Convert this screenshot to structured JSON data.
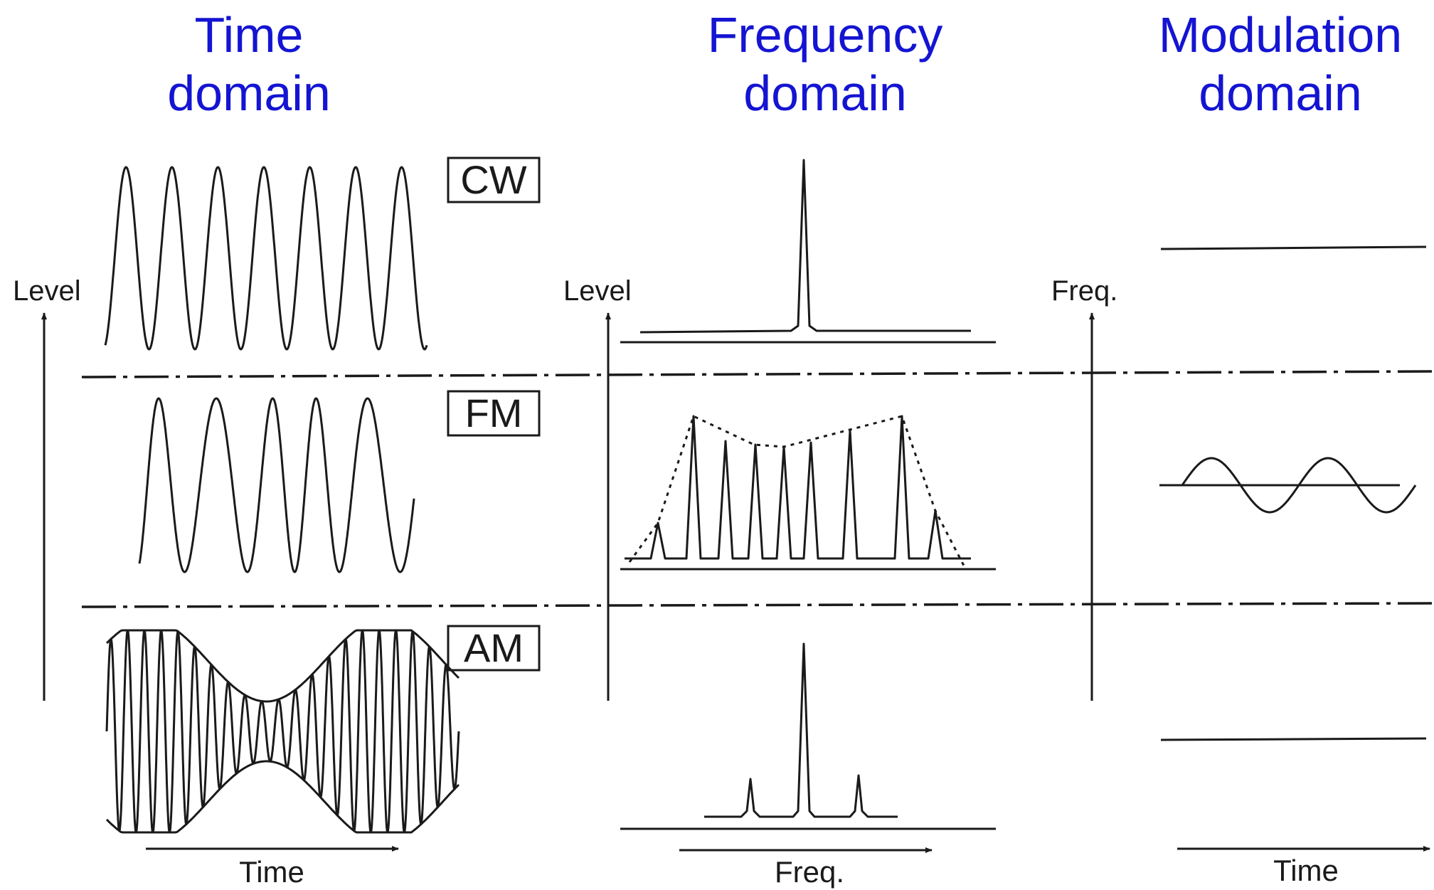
{
  "headings": {
    "time_domain": [
      "Time",
      "domain"
    ],
    "frequency_domain": [
      "Frequency",
      "domain"
    ],
    "modulation_domain": [
      "Modulation",
      "domain"
    ]
  },
  "signals": [
    {
      "id": "cw",
      "label": "CW"
    },
    {
      "id": "fm",
      "label": "FM"
    },
    {
      "id": "am",
      "label": "AM"
    }
  ],
  "axes": {
    "time_domain": {
      "y": "Level",
      "x": "Time"
    },
    "frequency_domain": {
      "y": "Level",
      "x": "Freq."
    },
    "modulation_domain": {
      "y": "Freq.",
      "x": "Time"
    }
  },
  "colors": {
    "heading": "#1414d2",
    "ink": "#1a1a1a"
  }
}
